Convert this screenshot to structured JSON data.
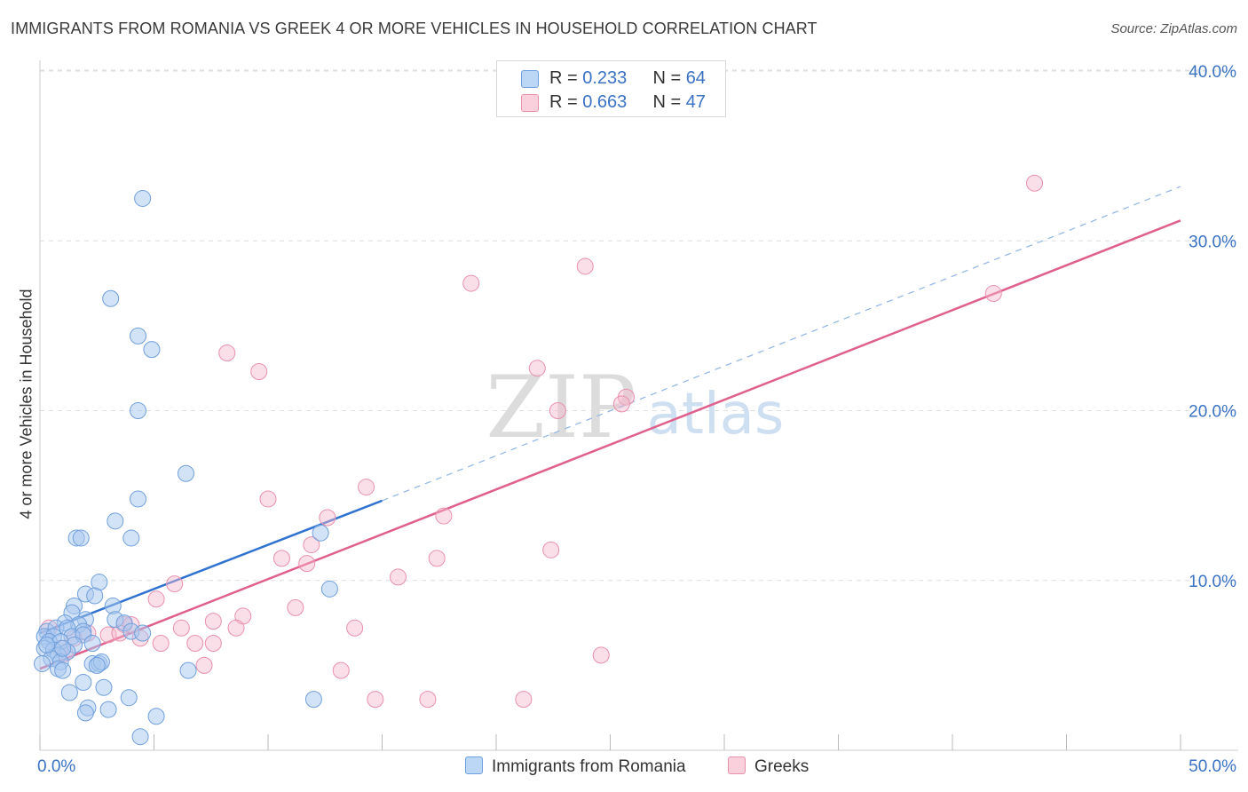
{
  "title": "IMMIGRANTS FROM ROMANIA VS GREEK 4 OR MORE VEHICLES IN HOUSEHOLD CORRELATION CHART",
  "source": "Source: ZipAtlas.com",
  "colors": {
    "blue_fill": "#a8c8f0",
    "blue_stroke": "#6f9fdc",
    "blue_line": "#2f72d0",
    "pink_fill": "#f7b8cc",
    "pink_stroke": "#e890ac",
    "pink_line": "#e0608c",
    "axis_text": "#3a72c4",
    "grid": "#dedede"
  },
  "legend": {
    "series1": {
      "r_label": "R = ",
      "r_value": "0.233",
      "n_label": "N = ",
      "n_value": "64"
    },
    "series2": {
      "r_label": "R = ",
      "r_value": "0.663",
      "n_label": "N = ",
      "n_value": "47"
    }
  },
  "chart_data": {
    "type": "scatter",
    "title": "IMMIGRANTS FROM ROMANIA VS GREEK 4 OR MORE VEHICLES IN HOUSEHOLD CORRELATION CHART",
    "xlabel": "",
    "ylabel": "4 or more Vehicles in Household",
    "xlim": [
      0,
      50
    ],
    "ylim": [
      0,
      40
    ],
    "x_tick_labels": [
      "0.0%",
      "50.0%"
    ],
    "y_ticks": [
      10,
      20,
      30,
      40
    ],
    "y_tick_labels": [
      "10.0%",
      "20.0%",
      "30.0%",
      "40.0%"
    ],
    "watermark": {
      "zip": "ZIP",
      "atlas": "atlas"
    },
    "series": [
      {
        "name": "Immigrants from Romania",
        "color": "#a8c8f0",
        "r": 0.233,
        "n": 64,
        "trend": {
          "x0": 0,
          "y0": 6.9,
          "x1": 15,
          "y1": 14.7,
          "dash_to_x": 50,
          "dash_to_y": 33.2
        },
        "points": [
          [
            4.5,
            32.5
          ],
          [
            3.1,
            26.6
          ],
          [
            4.3,
            24.4
          ],
          [
            4.9,
            23.6
          ],
          [
            4.3,
            20.0
          ],
          [
            6.4,
            16.3
          ],
          [
            4.3,
            14.8
          ],
          [
            3.3,
            13.5
          ],
          [
            1.6,
            12.5
          ],
          [
            1.8,
            12.5
          ],
          [
            4.0,
            12.5
          ],
          [
            12.3,
            12.8
          ],
          [
            2.6,
            9.9
          ],
          [
            12.7,
            9.5
          ],
          [
            2.0,
            9.2
          ],
          [
            2.4,
            9.1
          ],
          [
            1.5,
            8.5
          ],
          [
            3.2,
            8.5
          ],
          [
            1.4,
            8.1
          ],
          [
            2.0,
            7.7
          ],
          [
            3.3,
            7.7
          ],
          [
            1.1,
            7.5
          ],
          [
            1.7,
            7.4
          ],
          [
            3.7,
            7.5
          ],
          [
            0.3,
            7.0
          ],
          [
            0.7,
            7.2
          ],
          [
            1.2,
            7.2
          ],
          [
            1.9,
            7.0
          ],
          [
            4.0,
            7.0
          ],
          [
            4.5,
            6.9
          ],
          [
            0.2,
            6.7
          ],
          [
            0.6,
            6.7
          ],
          [
            1.4,
            6.7
          ],
          [
            1.9,
            6.8
          ],
          [
            0.4,
            6.4
          ],
          [
            0.9,
            6.4
          ],
          [
            1.5,
            6.2
          ],
          [
            2.3,
            6.3
          ],
          [
            0.2,
            6.0
          ],
          [
            0.6,
            5.9
          ],
          [
            1.2,
            5.8
          ],
          [
            0.8,
            5.6
          ],
          [
            0.5,
            5.4
          ],
          [
            0.9,
            5.2
          ],
          [
            0.1,
            5.1
          ],
          [
            2.3,
            5.1
          ],
          [
            2.6,
            5.1
          ],
          [
            2.7,
            5.2
          ],
          [
            0.8,
            4.8
          ],
          [
            1.0,
            4.7
          ],
          [
            6.5,
            4.7
          ],
          [
            1.9,
            4.0
          ],
          [
            2.8,
            3.7
          ],
          [
            1.3,
            3.4
          ],
          [
            3.9,
            3.1
          ],
          [
            12.0,
            3.0
          ],
          [
            2.1,
            2.5
          ],
          [
            3.0,
            2.4
          ],
          [
            2.0,
            2.2
          ],
          [
            5.1,
            2.0
          ],
          [
            4.4,
            0.8
          ],
          [
            2.5,
            5.0
          ],
          [
            0.3,
            6.2
          ],
          [
            1.0,
            6.0
          ]
        ]
      },
      {
        "name": "Greeks",
        "color": "#f7b8cc",
        "r": 0.663,
        "n": 47,
        "trend": {
          "x0": 0,
          "y0": 4.8,
          "x1": 50,
          "y1": 31.2
        },
        "points": [
          [
            43.6,
            33.4
          ],
          [
            18.9,
            27.5
          ],
          [
            23.9,
            28.5
          ],
          [
            41.8,
            26.9
          ],
          [
            8.2,
            23.4
          ],
          [
            9.6,
            22.3
          ],
          [
            21.8,
            22.5
          ],
          [
            25.7,
            20.8
          ],
          [
            25.5,
            20.4
          ],
          [
            22.7,
            20.0
          ],
          [
            14.3,
            15.5
          ],
          [
            10.0,
            14.8
          ],
          [
            12.6,
            13.7
          ],
          [
            17.7,
            13.8
          ],
          [
            22.4,
            11.8
          ],
          [
            11.9,
            12.1
          ],
          [
            10.6,
            11.3
          ],
          [
            17.4,
            11.3
          ],
          [
            11.7,
            11.0
          ],
          [
            15.7,
            10.2
          ],
          [
            5.9,
            9.8
          ],
          [
            5.1,
            8.9
          ],
          [
            11.2,
            8.4
          ],
          [
            8.9,
            7.9
          ],
          [
            7.6,
            7.6
          ],
          [
            3.7,
            7.4
          ],
          [
            4.0,
            7.4
          ],
          [
            6.2,
            7.2
          ],
          [
            8.6,
            7.2
          ],
          [
            13.8,
            7.2
          ],
          [
            3.0,
            6.8
          ],
          [
            3.5,
            6.9
          ],
          [
            0.4,
            7.2
          ],
          [
            1.5,
            6.6
          ],
          [
            2.1,
            6.9
          ],
          [
            4.4,
            6.6
          ],
          [
            5.3,
            6.3
          ],
          [
            6.8,
            6.3
          ],
          [
            7.6,
            6.3
          ],
          [
            0.9,
            6.0
          ],
          [
            1.1,
            5.7
          ],
          [
            7.2,
            5.0
          ],
          [
            24.6,
            5.6
          ],
          [
            13.2,
            4.7
          ],
          [
            14.7,
            3.0
          ],
          [
            17.0,
            3.0
          ],
          [
            21.2,
            3.0
          ]
        ]
      }
    ]
  },
  "bottom_legend": {
    "series1_label": "Immigrants from Romania",
    "series2_label": "Greeks"
  }
}
